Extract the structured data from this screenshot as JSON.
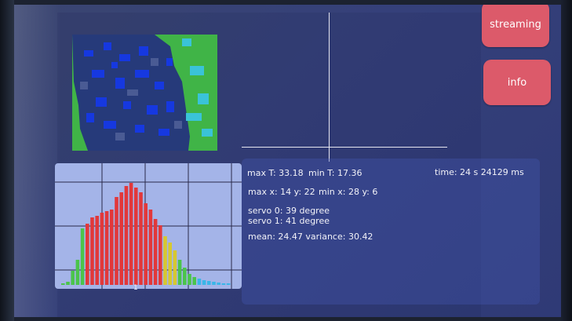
{
  "buttons": {
    "streaming": "streaming",
    "info": "info"
  },
  "stats": {
    "max_t": "max T: 33.18",
    "min_t": "min T: 17.36",
    "time": "time: 24 s 24129 ms",
    "max_pos": "max x: 14 y: 22",
    "min_pos": "min x: 28 y: 6",
    "servo0": "servo 0: 39   degree",
    "servo1": "servo 1: 41   degree",
    "mean_var": "mean: 24.47   variance: 30.42"
  },
  "histogram": {
    "x_tick": "1"
  },
  "colors": {
    "screen_bg": "#35407a",
    "button": "#dc5a6a",
    "histogram_bg": "#a4b4e8",
    "bar_red": "#e2383a",
    "bar_yellow": "#d7c82f",
    "bar_green": "#4bc44b",
    "bar_cyan": "#3ab6e8"
  }
}
